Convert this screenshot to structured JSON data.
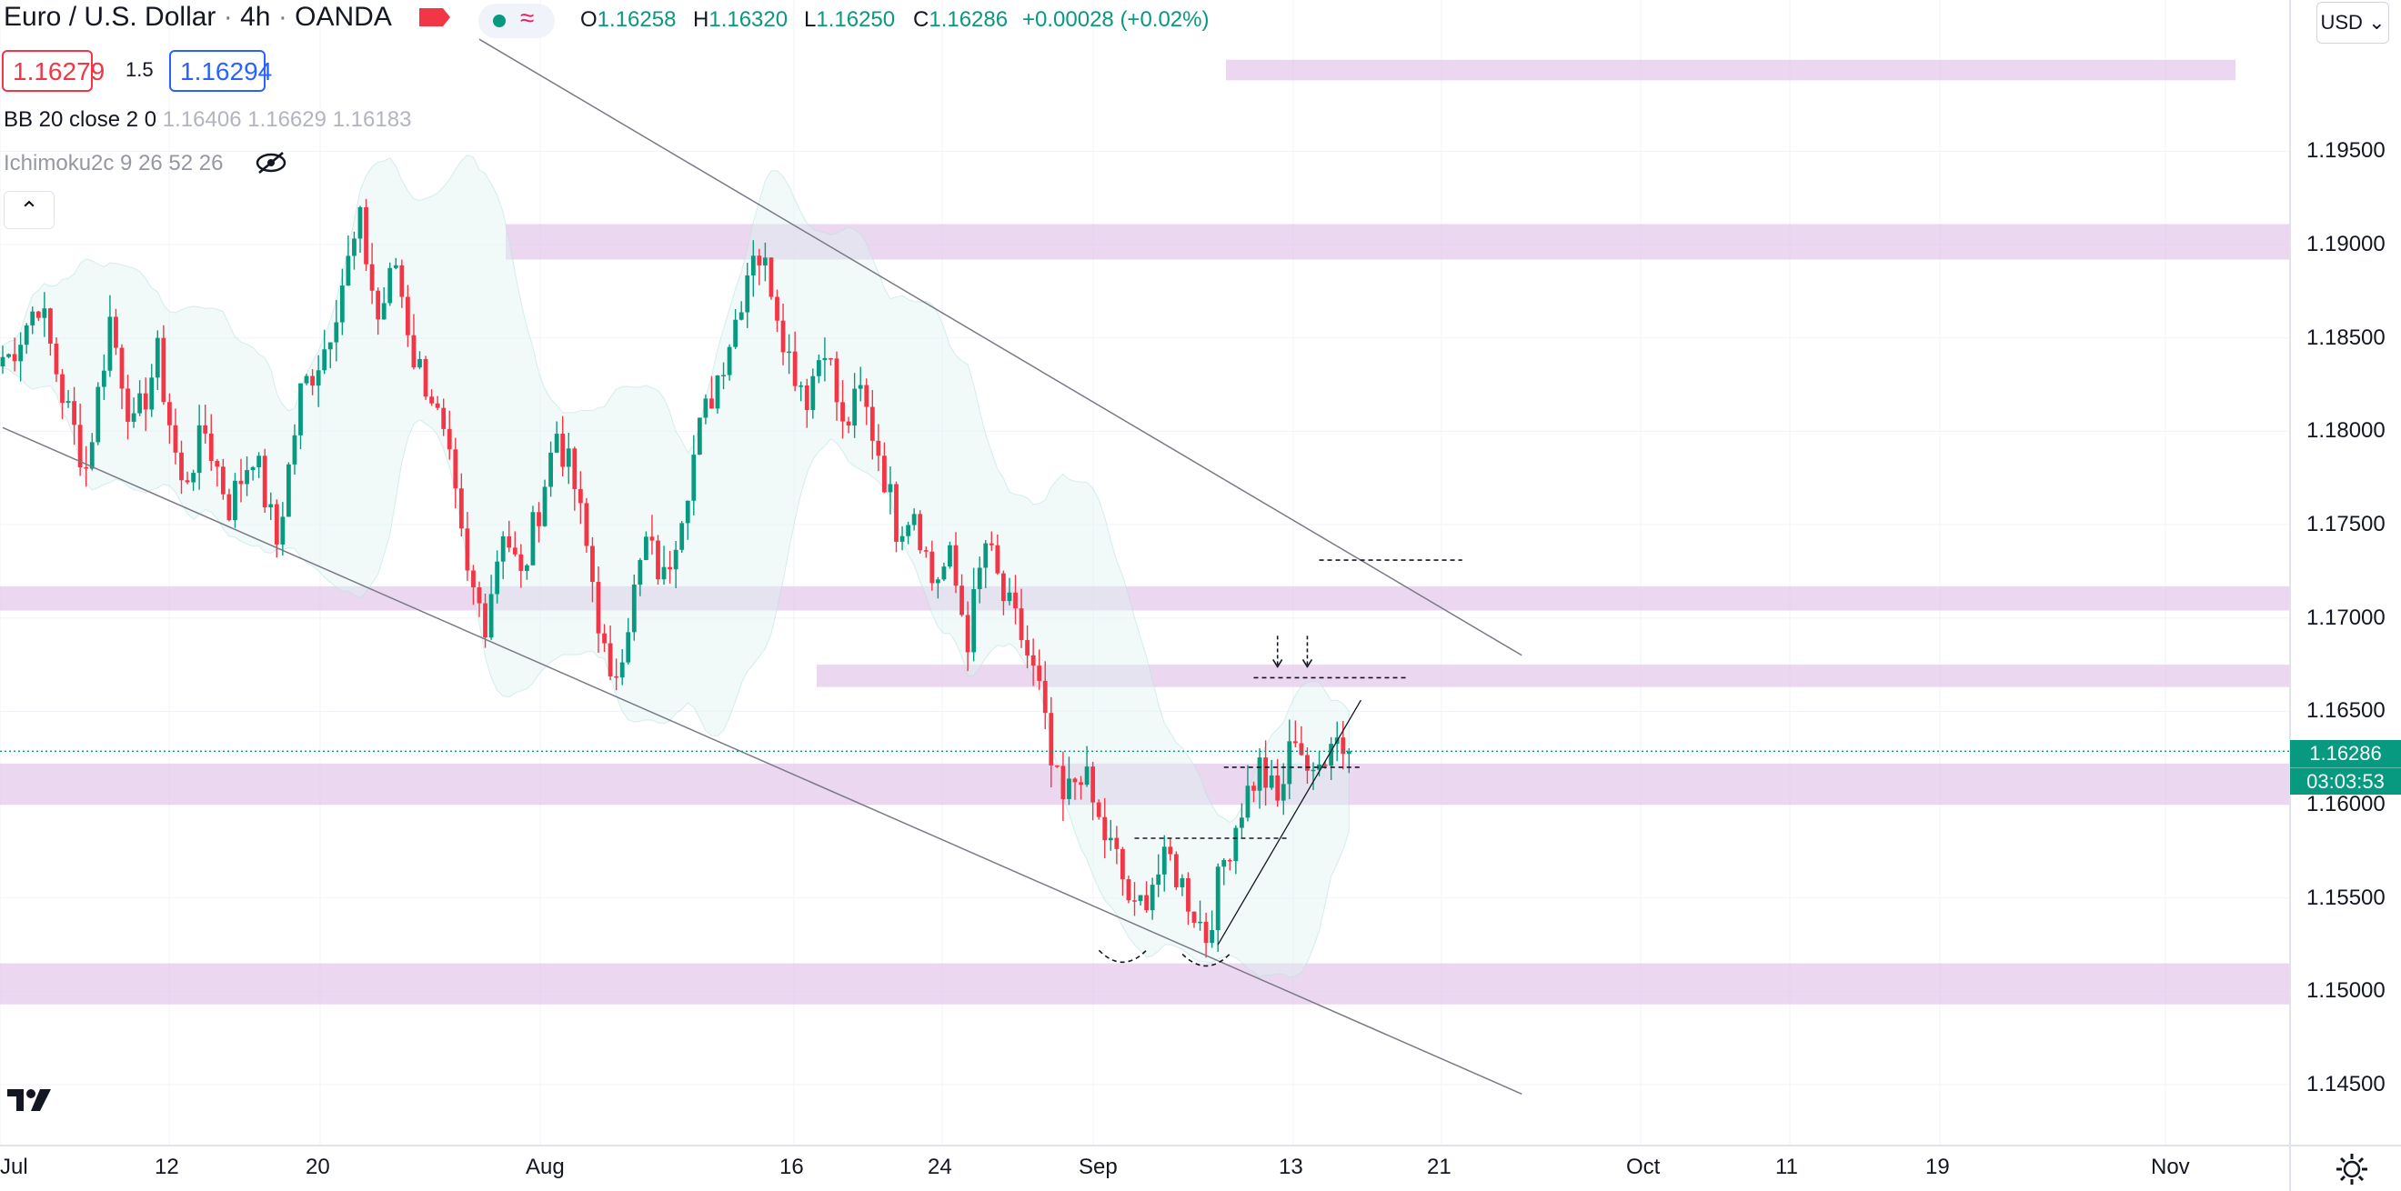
{
  "header": {
    "symbol_title": "Euro / U.S. Dollar",
    "interval": "4h",
    "exchange": "OANDA",
    "ohlc": [
      {
        "key": "O",
        "value": "1.16258"
      },
      {
        "key": "H",
        "value": "1.16320"
      },
      {
        "key": "L",
        "value": "1.16250"
      },
      {
        "key": "C",
        "value": "1.16286"
      }
    ],
    "change": "+0.00028 (+0.02%)",
    "status_icons": [
      "market-open-dot-icon",
      "data-delay-wave-icon"
    ]
  },
  "trade": {
    "sell_price": "1.16279",
    "spread": "1.5",
    "buy_price": "1.16294"
  },
  "indicators": [
    {
      "name": "BB 20 close 2 0",
      "values": [
        "1.16406",
        "1.16629",
        "1.16183"
      ]
    },
    {
      "name": "Ichimoku2c 9 26 52 26",
      "values": [],
      "hidden": true
    }
  ],
  "price_axis": {
    "currency": "USD",
    "ticks": [
      "1.19500",
      "1.19000",
      "1.18500",
      "1.18000",
      "1.17500",
      "1.17000",
      "1.16500",
      "1.16000",
      "1.15500",
      "1.15000",
      "1.14500"
    ],
    "last_price": "1.16286",
    "countdown": "03:03:53"
  },
  "time_axis": {
    "ticks": [
      "Jul",
      "12",
      "20",
      "Aug",
      "16",
      "24",
      "Sep",
      "13",
      "21",
      "Oct",
      "11",
      "19",
      "Nov"
    ]
  },
  "colors": {
    "up": "#089981",
    "down": "#f23645",
    "zone": "#e1bee7",
    "accent": "#2962ff"
  },
  "chart_data": {
    "type": "candlestick",
    "price_range": [
      1.1432,
      1.1976
    ],
    "zones": [
      [
        1.1988,
        1.1999
      ],
      [
        1.1892,
        1.1911
      ],
      [
        1.1704,
        1.1717
      ],
      [
        1.1663,
        1.1675
      ],
      [
        1.16,
        1.1622
      ],
      [
        1.1493,
        1.1515
      ]
    ],
    "path": [
      [
        1,
        1.184
      ],
      [
        6,
        1.187
      ],
      [
        10,
        1.182
      ],
      [
        14,
        1.178
      ],
      [
        18,
        1.186
      ],
      [
        22,
        1.18
      ],
      [
        26,
        1.184
      ],
      [
        30,
        1.177
      ],
      [
        34,
        1.18
      ],
      [
        38,
        1.176
      ],
      [
        42,
        1.179
      ],
      [
        46,
        1.174
      ],
      [
        50,
        1.182
      ],
      [
        54,
        1.1845
      ],
      [
        57,
        1.188
      ],
      [
        60,
        1.191
      ],
      [
        63,
        1.186
      ],
      [
        66,
        1.189
      ],
      [
        69,
        1.184
      ],
      [
        72,
        1.182
      ],
      [
        75,
        1.178
      ],
      [
        78,
        1.172
      ],
      [
        81,
        1.17
      ],
      [
        84,
        1.175
      ],
      [
        87,
        1.172
      ],
      [
        90,
        1.176
      ],
      [
        93,
        1.18
      ],
      [
        96,
        1.177
      ],
      [
        99,
        1.172
      ],
      [
        102,
        1.166
      ],
      [
        105,
        1.17
      ],
      [
        108,
        1.174
      ],
      [
        111,
        1.172
      ],
      [
        114,
        1.176
      ],
      [
        117,
        1.18
      ],
      [
        120,
        1.183
      ],
      [
        123,
        1.186
      ],
      [
        126,
        1.19
      ],
      [
        129,
        1.188
      ],
      [
        132,
        1.184
      ],
      [
        135,
        1.182
      ],
      [
        138,
        1.185
      ],
      [
        141,
        1.18
      ],
      [
        144,
        1.182
      ],
      [
        147,
        1.179
      ],
      [
        150,
        1.175
      ],
      [
        153,
        1.176
      ],
      [
        156,
        1.172
      ],
      [
        159,
        1.173
      ],
      [
        162,
        1.169
      ],
      [
        165,
        1.174
      ],
      [
        168,
        1.171
      ],
      [
        171,
        1.169
      ],
      [
        174,
        1.166
      ],
      [
        176,
        1.162
      ],
      [
        178,
        1.16
      ],
      [
        181,
        1.162
      ],
      [
        184,
        1.159
      ],
      [
        187,
        1.157
      ],
      [
        190,
        1.154
      ],
      [
        193,
        1.156
      ],
      [
        196,
        1.157
      ],
      [
        199,
        1.155
      ],
      [
        202,
        1.153
      ],
      [
        205,
        1.157
      ],
      [
        208,
        1.16
      ],
      [
        211,
        1.162
      ],
      [
        214,
        1.16
      ],
      [
        217,
        1.164
      ],
      [
        220,
        1.161
      ],
      [
        223,
        1.164
      ],
      [
        226,
        1.1629
      ]
    ],
    "channel_lines": [
      [
        [
          0,
          1.1802
        ],
        [
          255,
          1.1445
        ]
      ],
      [
        [
          80,
          1.201
        ],
        [
          255,
          1.168
        ]
      ]
    ],
    "support_line": [
      [
        204,
        1.1525
      ],
      [
        228,
        1.1656
      ]
    ],
    "levels": [
      {
        "y": 1.1731,
        "x": [
          221,
          245
        ]
      },
      {
        "y": 1.1668,
        "x": [
          210,
          236
        ]
      },
      {
        "y": 1.162,
        "x": [
          205,
          228
        ]
      },
      {
        "y": 1.1582,
        "x": [
          190,
          216
        ]
      }
    ],
    "arrows": [
      [
        214,
        1.1668
      ],
      [
        219,
        1.1668
      ]
    ],
    "bottoms": [
      [
        188,
        1.152
      ],
      [
        202,
        1.1518
      ]
    ]
  }
}
